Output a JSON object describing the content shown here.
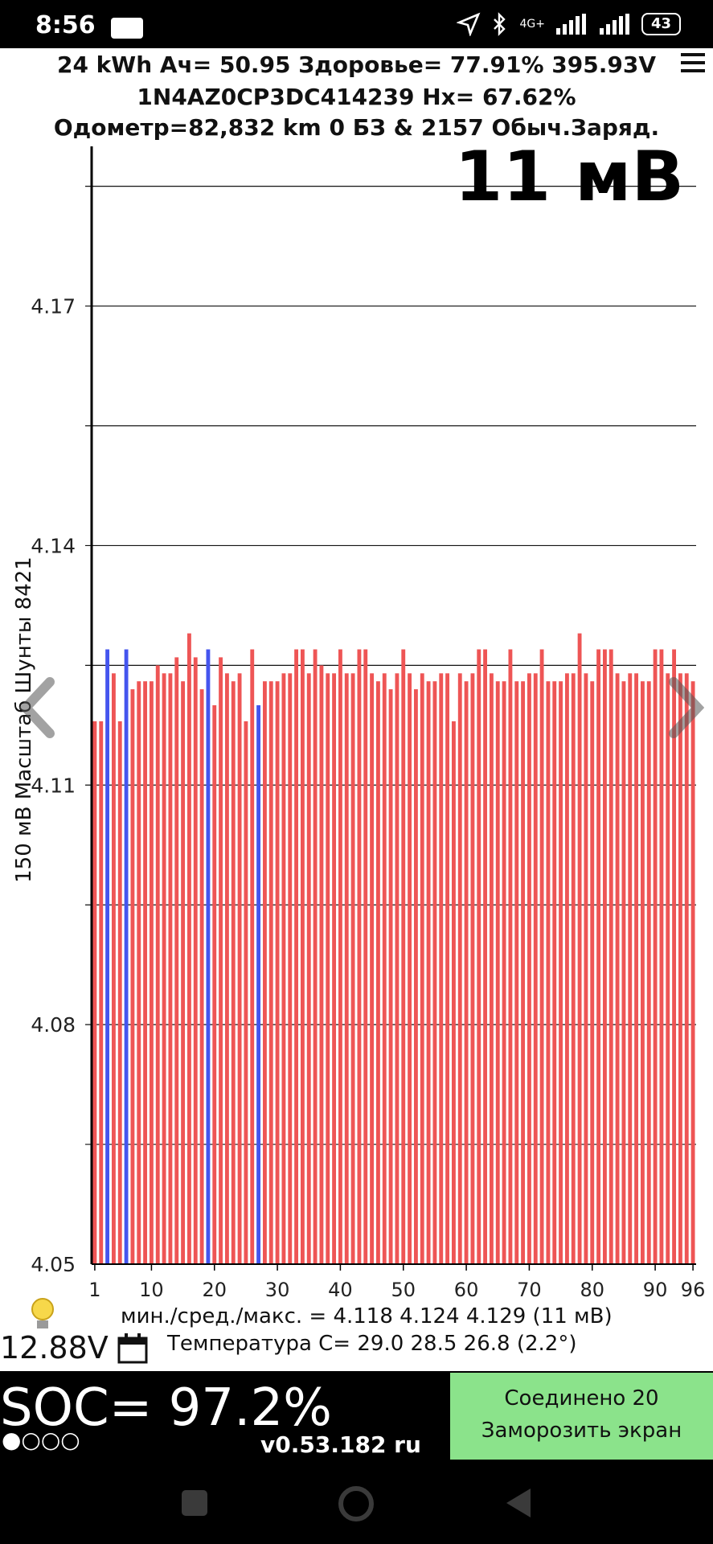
{
  "status": {
    "time": "8:56",
    "network": "4G+",
    "battery": "43"
  },
  "header": {
    "line1": "24 kWh  Ач= 50.95  Здоровье= 77.91%   395.93V",
    "line2": "1N4AZ0CP3DC414239   Hx= 67.62%",
    "line3": "Одометр=82,832 km 0 БЗ & 2157 Обыч.Заряд."
  },
  "spread_label": "11 мВ",
  "y_axis_label": "150 мВ Масштаб  Шунты 8421",
  "chart_data": {
    "type": "bar",
    "ylim": [
      4.05,
      4.19
    ],
    "y_ticks": [
      "4.05",
      "4.08",
      "4.11",
      "4.14",
      "4.17"
    ],
    "x_ticks": [
      "1",
      "10",
      "20",
      "30",
      "40",
      "50",
      "60",
      "70",
      "80",
      "90",
      "96"
    ],
    "grid": true,
    "colors": {
      "normal": "#ee5555",
      "shunt": "#4455ee"
    },
    "values": [
      4.118,
      4.118,
      4.127,
      4.124,
      4.118,
      4.127,
      4.122,
      4.123,
      4.123,
      4.123,
      4.125,
      4.124,
      4.124,
      4.126,
      4.123,
      4.129,
      4.126,
      4.122,
      4.127,
      4.12,
      4.126,
      4.124,
      4.123,
      4.124,
      4.118,
      4.127,
      4.12,
      4.123,
      4.123,
      4.123,
      4.124,
      4.124,
      4.127,
      4.127,
      4.124,
      4.127,
      4.125,
      4.124,
      4.124,
      4.127,
      4.124,
      4.124,
      4.127,
      4.127,
      4.124,
      4.123,
      4.124,
      4.122,
      4.124,
      4.127,
      4.124,
      4.122,
      4.124,
      4.123,
      4.123,
      4.124,
      4.124,
      4.118,
      4.124,
      4.123,
      4.124,
      4.127,
      4.127,
      4.124,
      4.123,
      4.123,
      4.127,
      4.123,
      4.123,
      4.124,
      4.124,
      4.127,
      4.123,
      4.123,
      4.123,
      4.124,
      4.124,
      4.129,
      4.124,
      4.123,
      4.127,
      4.127,
      4.127,
      4.124,
      4.123,
      4.124,
      4.124,
      4.123,
      4.123,
      4.127,
      4.127,
      4.124,
      4.127,
      4.124,
      4.124,
      4.123
    ],
    "shunt_cells": [
      3,
      6,
      19,
      27
    ]
  },
  "footer": {
    "stats": "мин./сред./макс. = 4.118 4.124 4.129  (11 мВ)",
    "aux_voltage": "12.88V",
    "temperature": "Температура С= 29.0  28.5  26.8  (2.2°)",
    "soc": "SOC= 97.2%",
    "dots": "●○○○",
    "version": "v0.53.182 ru",
    "connect_line1": "Соединено 20",
    "connect_line2": "Заморозить экран"
  }
}
